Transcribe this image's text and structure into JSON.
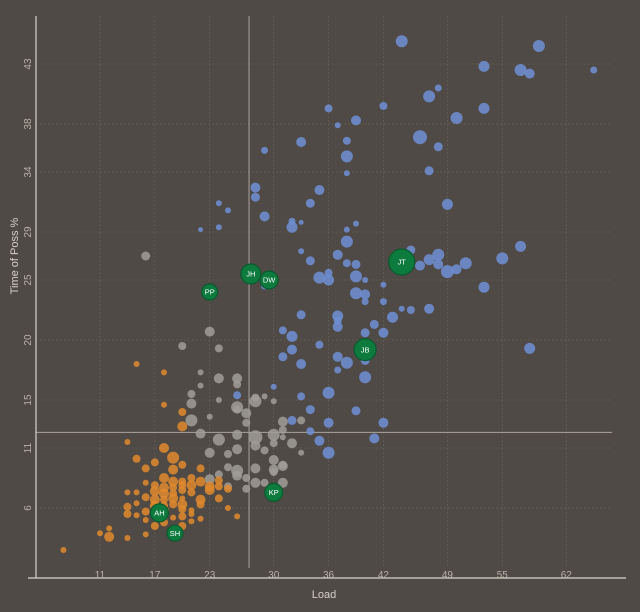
{
  "chart_data": {
    "type": "scatter",
    "title": "",
    "xlabel": "Load",
    "ylabel": "Time of Poss %",
    "xlim": [
      4,
      67
    ],
    "ylim": [
      1,
      47
    ],
    "x_ticks": [
      11,
      17,
      23,
      30,
      36,
      42,
      49,
      55,
      62
    ],
    "y_ticks": [
      6,
      11,
      15,
      20,
      25,
      29,
      34,
      38,
      43
    ],
    "reference_lines": {
      "x": 27.3,
      "y": 12.3
    },
    "grid": true,
    "colors": {
      "low": "#e08a2e",
      "mid": "#a09c98",
      "high": "#6f8fd6",
      "highlight": "#0d7a3e",
      "highlight_stroke": "#0a5a2e",
      "reference_line": "#a9a39c",
      "axis": "#d8d3cd",
      "grid": "#6c665f"
    },
    "highlighted": [
      {
        "label": "JT",
        "x": 44.0,
        "y": 26.5,
        "r": 13
      },
      {
        "label": "JH",
        "x": 27.5,
        "y": 25.5,
        "r": 10
      },
      {
        "label": "DW",
        "x": 29.5,
        "y": 25.0,
        "r": 9
      },
      {
        "label": "PP",
        "x": 23.0,
        "y": 24.0,
        "r": 8
      },
      {
        "label": "JB",
        "x": 40.0,
        "y": 19.2,
        "r": 11
      },
      {
        "label": "KP",
        "x": 30.0,
        "y": 7.3,
        "r": 9
      },
      {
        "label": "AH",
        "x": 17.5,
        "y": 5.6,
        "r": 9
      },
      {
        "label": "SH",
        "x": 19.2,
        "y": 3.9,
        "r": 8
      }
    ],
    "series": [
      {
        "group": "high",
        "points": [
          [
            44,
            44.9,
            6
          ],
          [
            53,
            42.8,
            5.5
          ],
          [
            57,
            42.5,
            6
          ],
          [
            58,
            42.2,
            5
          ],
          [
            59,
            44.5,
            6
          ],
          [
            65,
            42.5,
            3.5
          ],
          [
            47,
            40.3,
            6
          ],
          [
            48,
            41,
            3.5
          ],
          [
            42,
            39.5,
            4
          ],
          [
            50,
            38.5,
            6
          ],
          [
            53,
            39.3,
            5.5
          ],
          [
            36,
            39.3,
            4
          ],
          [
            39,
            38.3,
            5
          ],
          [
            37,
            37.9,
            3
          ],
          [
            33,
            36.5,
            5
          ],
          [
            38,
            36.6,
            4
          ],
          [
            46,
            36.9,
            7
          ],
          [
            48,
            36.1,
            4.5
          ],
          [
            29,
            35.8,
            3.5
          ],
          [
            38,
            35.3,
            6
          ],
          [
            38,
            33.9,
            3
          ],
          [
            47,
            34.1,
            4.5
          ],
          [
            28,
            32.7,
            5
          ],
          [
            28,
            31.9,
            4.5
          ],
          [
            35,
            32.5,
            5
          ],
          [
            34,
            31.4,
            4.5
          ],
          [
            25,
            30.8,
            3
          ],
          [
            24,
            31.4,
            3
          ],
          [
            29,
            30.3,
            5
          ],
          [
            32,
            29.9,
            3.5
          ],
          [
            32,
            29.4,
            5.5
          ],
          [
            49,
            31.3,
            5.5
          ],
          [
            39,
            29.7,
            3
          ],
          [
            22,
            29.2,
            2.5
          ],
          [
            24,
            29.4,
            3
          ],
          [
            33,
            29.8,
            2.5
          ],
          [
            38,
            29.2,
            3
          ],
          [
            38,
            28.2,
            6
          ],
          [
            37,
            27.1,
            5
          ],
          [
            33,
            27.4,
            3
          ],
          [
            34,
            26.6,
            4.5
          ],
          [
            29,
            24.5,
            3.5
          ],
          [
            39,
            26.3,
            4.5
          ],
          [
            45,
            27.5,
            4.5
          ],
          [
            46,
            26.2,
            5
          ],
          [
            47,
            26.7,
            5.5
          ],
          [
            48,
            26.3,
            5
          ],
          [
            50,
            25.9,
            5
          ],
          [
            48,
            27.1,
            6
          ],
          [
            49,
            25.7,
            6.5
          ],
          [
            51,
            26.4,
            6
          ],
          [
            55,
            26.8,
            6
          ],
          [
            35,
            25.2,
            6
          ],
          [
            36,
            25.6,
            4
          ],
          [
            36,
            25,
            5.5
          ],
          [
            39,
            25.3,
            6
          ],
          [
            38,
            26.4,
            4
          ],
          [
            40,
            25,
            3
          ],
          [
            42,
            24.6,
            3
          ],
          [
            39,
            23.9,
            6
          ],
          [
            40,
            23.8,
            5
          ],
          [
            40,
            23.2,
            3.5
          ],
          [
            42,
            23.2,
            3.5
          ],
          [
            44,
            22.6,
            3
          ],
          [
            53,
            24.4,
            5.5
          ],
          [
            45,
            22.5,
            4
          ],
          [
            47,
            22.6,
            5
          ],
          [
            33,
            22.1,
            4.5
          ],
          [
            37,
            22,
            5.5
          ],
          [
            37,
            21.6,
            4
          ],
          [
            43,
            21.9,
            5.5
          ],
          [
            41,
            21.3,
            4.5
          ],
          [
            37,
            21.1,
            5
          ],
          [
            40,
            20.6,
            4.5
          ],
          [
            40,
            19.5,
            6
          ],
          [
            42,
            20.6,
            5
          ],
          [
            31,
            20.8,
            4
          ],
          [
            32,
            20.3,
            5.5
          ],
          [
            32,
            19.2,
            5
          ],
          [
            35,
            19.6,
            4
          ],
          [
            37,
            18.6,
            5
          ],
          [
            38,
            18.1,
            6
          ],
          [
            40,
            18.3,
            4.5
          ],
          [
            33,
            18,
            5
          ],
          [
            31,
            18.6,
            4.5
          ],
          [
            37,
            17.5,
            3.5
          ],
          [
            40,
            16.9,
            6
          ],
          [
            36,
            15.6,
            6
          ],
          [
            33,
            15.3,
            4
          ],
          [
            30,
            16.1,
            3
          ],
          [
            34,
            14.2,
            4.5
          ],
          [
            39,
            14.1,
            4.5
          ],
          [
            32,
            13.3,
            4.5
          ],
          [
            36,
            13.1,
            5
          ],
          [
            42,
            13.1,
            5
          ],
          [
            34,
            12.4,
            4
          ],
          [
            35,
            11.6,
            5
          ],
          [
            41,
            11.8,
            5
          ],
          [
            36,
            10.6,
            6
          ],
          [
            58,
            19.3,
            5.5
          ],
          [
            57,
            27.8,
            5.5
          ],
          [
            26,
            15.4,
            4
          ]
        ]
      },
      {
        "group": "mid",
        "points": [
          [
            16,
            27,
            4.5
          ],
          [
            20,
            19.5,
            4
          ],
          [
            23,
            20.7,
            5
          ],
          [
            24,
            19.3,
            4
          ],
          [
            22,
            17.3,
            3
          ],
          [
            24,
            16.8,
            5
          ],
          [
            26,
            16.8,
            5
          ],
          [
            26,
            16.3,
            4
          ],
          [
            22,
            16.2,
            3
          ],
          [
            21,
            15.5,
            4
          ],
          [
            24,
            15,
            3
          ],
          [
            21,
            14.7,
            5
          ],
          [
            26,
            14.4,
            6
          ],
          [
            28,
            14.9,
            6
          ],
          [
            27,
            13.9,
            5
          ],
          [
            28,
            15.2,
            4
          ],
          [
            30,
            14.9,
            3
          ],
          [
            29,
            15.3,
            3
          ],
          [
            21,
            13.3,
            6
          ],
          [
            23,
            13.6,
            3
          ],
          [
            27,
            13.1,
            4
          ],
          [
            31,
            13.2,
            5
          ],
          [
            31,
            12.5,
            4
          ],
          [
            32,
            11.4,
            5
          ],
          [
            22,
            12.2,
            5
          ],
          [
            24,
            11.7,
            6
          ],
          [
            26,
            12.1,
            5
          ],
          [
            28,
            11.9,
            7
          ],
          [
            30,
            12.1,
            6
          ],
          [
            30,
            11.4,
            4
          ],
          [
            23,
            10.6,
            5
          ],
          [
            25,
            10.5,
            4
          ],
          [
            28,
            11.2,
            5
          ],
          [
            29,
            10.8,
            4
          ],
          [
            31,
            9.6,
            4
          ],
          [
            30,
            9.2,
            5
          ],
          [
            25,
            9.4,
            4
          ],
          [
            26,
            9.1,
            6
          ],
          [
            26,
            8.7,
            5
          ],
          [
            28,
            9.3,
            5
          ],
          [
            30,
            9,
            4
          ],
          [
            30,
            10,
            5
          ],
          [
            24,
            8.8,
            4
          ],
          [
            23,
            8.4,
            5
          ],
          [
            27,
            8.5,
            4
          ],
          [
            28,
            8.1,
            5
          ],
          [
            29,
            8.1,
            4
          ],
          [
            31,
            8.1,
            5
          ],
          [
            31,
            9.5,
            5
          ],
          [
            25,
            7.8,
            4
          ],
          [
            27,
            7.6,
            4
          ],
          [
            26,
            10.9,
            5
          ],
          [
            26,
            14.2,
            4
          ],
          [
            33,
            13.3,
            4
          ],
          [
            33,
            10.6,
            3
          ],
          [
            31,
            11.9,
            3
          ]
        ]
      },
      {
        "group": "low",
        "points": [
          [
            15,
            18,
            3
          ],
          [
            18,
            17.3,
            3
          ],
          [
            18,
            14.6,
            3
          ],
          [
            20,
            14,
            4
          ],
          [
            20,
            12.8,
            5
          ],
          [
            14,
            11.5,
            3
          ],
          [
            18,
            11,
            5
          ],
          [
            19,
            10.2,
            6
          ],
          [
            15,
            10.1,
            4
          ],
          [
            17,
            9.8,
            4
          ],
          [
            16,
            9.3,
            4
          ],
          [
            20,
            9.6,
            4
          ],
          [
            22,
            9.3,
            4
          ],
          [
            19,
            9.2,
            5
          ],
          [
            21,
            8.5,
            4
          ],
          [
            18,
            8.5,
            5
          ],
          [
            19,
            8.2,
            5
          ],
          [
            20,
            8.2,
            4
          ],
          [
            22,
            8.2,
            5
          ],
          [
            24,
            8.3,
            4
          ],
          [
            16,
            8.1,
            3
          ],
          [
            17,
            7.9,
            4
          ],
          [
            18,
            7.7,
            5
          ],
          [
            19,
            7.7,
            4
          ],
          [
            20,
            7.9,
            4
          ],
          [
            21,
            7.9,
            5
          ],
          [
            23,
            7.8,
            5
          ],
          [
            24,
            7.8,
            4
          ],
          [
            25,
            7.6,
            4
          ],
          [
            17,
            7.4,
            5
          ],
          [
            18,
            7.2,
            5
          ],
          [
            19,
            7.2,
            4
          ],
          [
            20,
            7.5,
            4
          ],
          [
            21,
            7.3,
            4
          ],
          [
            23,
            7.5,
            5
          ],
          [
            14,
            7.3,
            3
          ],
          [
            15,
            7.3,
            3
          ],
          [
            16,
            6.9,
            4
          ],
          [
            17,
            6.7,
            5
          ],
          [
            18,
            6.7,
            4
          ],
          [
            19,
            6.8,
            5
          ],
          [
            20,
            6.8,
            3
          ],
          [
            22,
            6.7,
            5
          ],
          [
            24,
            6.8,
            4
          ],
          [
            15,
            6.4,
            3
          ],
          [
            17,
            6.2,
            5
          ],
          [
            18,
            6.2,
            4
          ],
          [
            19,
            6.3,
            4
          ],
          [
            20,
            6.3,
            5
          ],
          [
            22,
            6.3,
            4
          ],
          [
            14,
            6.1,
            4
          ],
          [
            16,
            5.7,
            4
          ],
          [
            17,
            5.9,
            3
          ],
          [
            18,
            5.8,
            5
          ],
          [
            20,
            5.9,
            4
          ],
          [
            21,
            5.8,
            3
          ],
          [
            14,
            5.5,
            4
          ],
          [
            15,
            5.4,
            3
          ],
          [
            18,
            5.3,
            4
          ],
          [
            19,
            5.2,
            3
          ],
          [
            20,
            5.3,
            4
          ],
          [
            21,
            5.5,
            3
          ],
          [
            16,
            5,
            3
          ],
          [
            18,
            4.8,
            4
          ],
          [
            20,
            4.5,
            4
          ],
          [
            21,
            4.9,
            3
          ],
          [
            12,
            4.3,
            3
          ],
          [
            11,
            3.9,
            3
          ],
          [
            12,
            3.6,
            5
          ],
          [
            16,
            3.8,
            3
          ],
          [
            14,
            3.5,
            3
          ],
          [
            17,
            4.5,
            4
          ],
          [
            7,
            2.5,
            3
          ],
          [
            26,
            5.3,
            3
          ],
          [
            22,
            5.1,
            3
          ],
          [
            25,
            6,
            3
          ]
        ]
      }
    ]
  }
}
